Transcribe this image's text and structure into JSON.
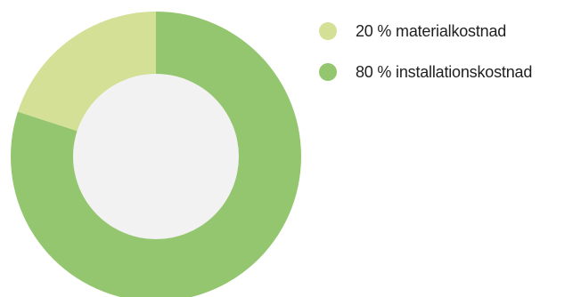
{
  "chart_data": {
    "type": "pie",
    "variant": "donut",
    "start_angle_deg": 0,
    "direction": "clockwise",
    "hole_color": "#f2f2f2",
    "slices": [
      {
        "label": "80 % installationskostnad",
        "value": 80,
        "color": "#94c66f"
      },
      {
        "label": "20 % materialkostnad",
        "value": 20,
        "color": "#d3e096"
      }
    ],
    "legend": {
      "position": "top-right",
      "items": [
        {
          "label": "20 % materialkostnad",
          "color": "#d3e096"
        },
        {
          "label": "80 % installationskostnad",
          "color": "#94c66f"
        }
      ]
    }
  }
}
